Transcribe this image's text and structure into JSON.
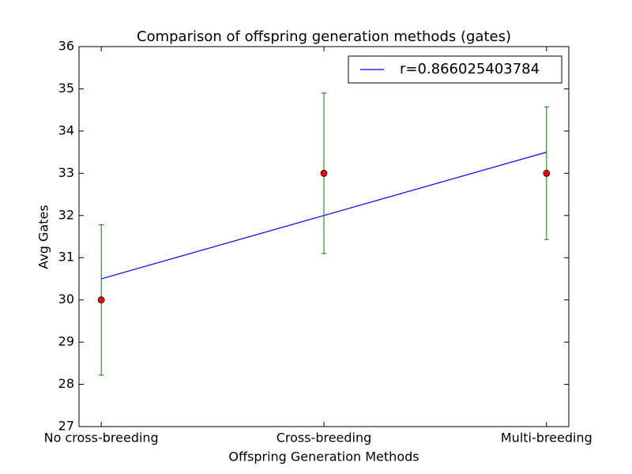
{
  "chart_data": {
    "type": "errorbar",
    "title": "Comparison of offspring generation methods (gates)",
    "xlabel": "Offspring Generation Methods",
    "ylabel": "Avg Gates",
    "categories": [
      "No cross-breeding",
      "Cross-breeding",
      "Multi-breeding"
    ],
    "points": {
      "values": [
        30,
        33,
        33
      ],
      "errors": [
        1.78,
        1.9,
        1.57
      ],
      "color": "#ff0000",
      "error_color": "#008000"
    },
    "series": [
      {
        "name": "r=0.866025403784",
        "color": "#0000ff",
        "values": [
          30.5,
          32,
          33.5
        ]
      }
    ],
    "xlim": [
      -0.1,
      2.1
    ],
    "ylim": [
      27,
      36
    ],
    "yticks": [
      27,
      28,
      29,
      30,
      31,
      32,
      33,
      34,
      35,
      36
    ],
    "legend": "upper right"
  }
}
